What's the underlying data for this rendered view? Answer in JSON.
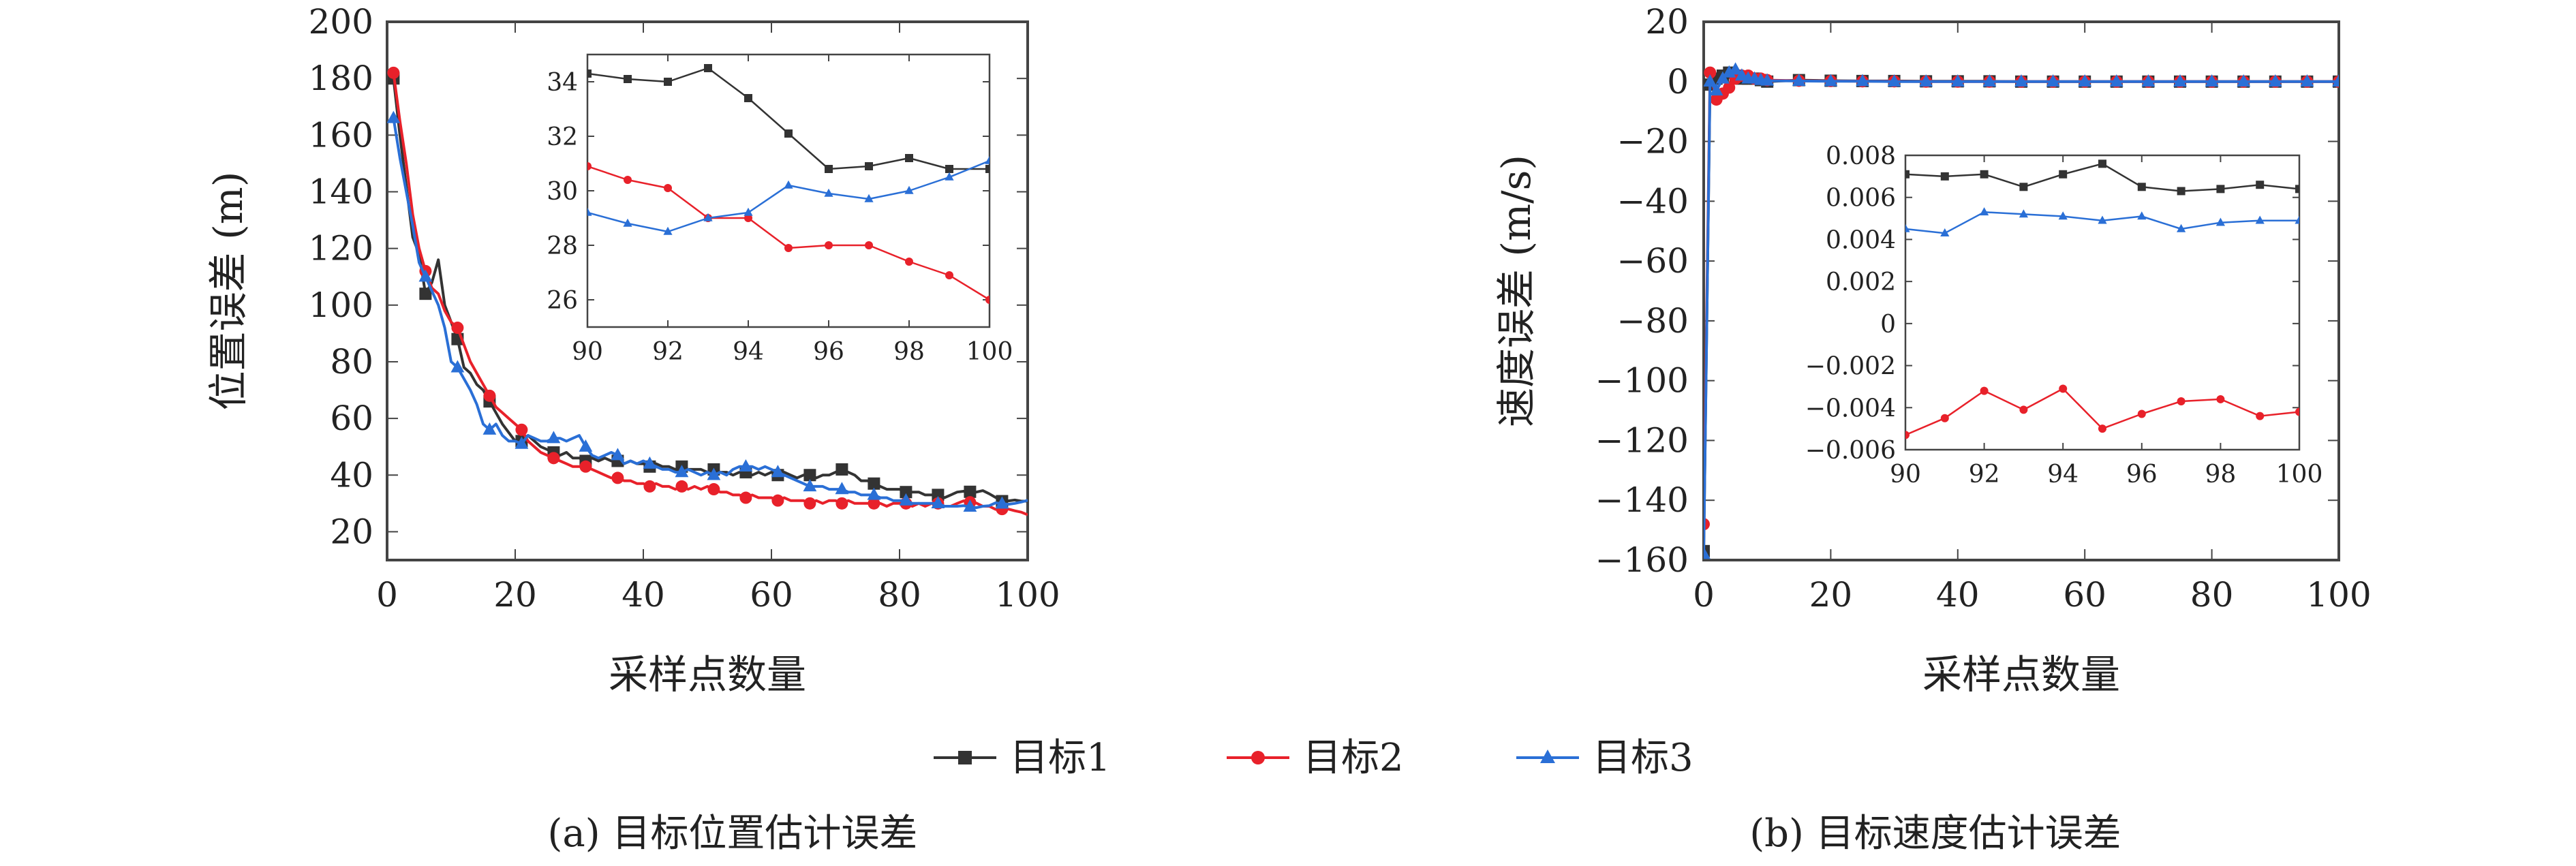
{
  "chart_data": [
    {
      "type": "line",
      "panel": "a",
      "caption": "(a) 目标位置估计误差",
      "xlabel": "采样点数量",
      "ylabel": "位置误差 (m)",
      "xlim": [
        0,
        100
      ],
      "ylim": [
        10,
        200
      ],
      "xticks": [
        0,
        20,
        40,
        60,
        80,
        100
      ],
      "yticks": [
        20,
        40,
        60,
        80,
        100,
        120,
        140,
        160,
        180,
        200
      ],
      "grid": false,
      "x": [
        1,
        2,
        3,
        4,
        5,
        6,
        7,
        8,
        9,
        10,
        11,
        12,
        13,
        14,
        15,
        16,
        17,
        18,
        19,
        20,
        21,
        22,
        23,
        24,
        25,
        26,
        27,
        28,
        29,
        30,
        31,
        32,
        33,
        34,
        35,
        36,
        37,
        38,
        39,
        40,
        41,
        42,
        43,
        44,
        45,
        46,
        47,
        48,
        49,
        50,
        51,
        52,
        53,
        54,
        55,
        56,
        57,
        58,
        59,
        60,
        61,
        62,
        63,
        64,
        65,
        66,
        67,
        68,
        69,
        70,
        71,
        72,
        73,
        74,
        75,
        76,
        77,
        78,
        79,
        80,
        81,
        82,
        83,
        84,
        85,
        86,
        87,
        88,
        89,
        90,
        91,
        92,
        93,
        94,
        95,
        96,
        97,
        98,
        99,
        100
      ],
      "markers_every": 5,
      "series": [
        {
          "name": "目标1",
          "color": "#333333",
          "marker": "square",
          "values": [
            180,
            160,
            142,
            124,
            118,
            104,
            108,
            116,
            100,
            94,
            88,
            78,
            76,
            72,
            70,
            66,
            62,
            58,
            55,
            52,
            52,
            54,
            52,
            50,
            49,
            48,
            47,
            48,
            46,
            46,
            45,
            46,
            45,
            46,
            45,
            45,
            44,
            45,
            44,
            44,
            43,
            44,
            43,
            43,
            42,
            43,
            42,
            42,
            42,
            41,
            42,
            41,
            41,
            40,
            41,
            41,
            40,
            41,
            40,
            41,
            40,
            41,
            40,
            39,
            40,
            40,
            39,
            40,
            40,
            41,
            42,
            41,
            40,
            38,
            38,
            37,
            36,
            35,
            35,
            35,
            34,
            34,
            34,
            33,
            33,
            33,
            32,
            33,
            34,
            34.3,
            34.1,
            34.0,
            34.5,
            33.4,
            32.1,
            30.8,
            30.9,
            31.2,
            30.8,
            30.8
          ]
        },
        {
          "name": "目标2",
          "color": "#e8212a",
          "marker": "circle",
          "values": [
            182,
            165,
            150,
            132,
            120,
            112,
            106,
            104,
            98,
            94,
            92,
            86,
            80,
            76,
            72,
            68,
            64,
            62,
            60,
            58,
            56,
            52,
            50,
            48,
            47,
            46,
            45,
            44,
            43,
            43,
            43,
            42,
            41,
            40,
            39,
            39,
            38,
            38,
            37,
            37,
            36,
            37,
            36,
            36,
            35,
            36,
            35,
            36,
            35,
            36,
            35,
            34,
            34,
            33,
            33,
            32,
            33,
            32,
            32,
            32,
            31,
            32,
            31,
            31,
            31,
            30,
            31,
            30,
            31,
            31,
            30,
            31,
            30,
            30,
            30,
            30,
            30,
            29,
            30,
            30,
            30,
            29,
            30,
            29,
            30,
            30,
            29,
            29,
            30,
            30.9,
            30.4,
            30.1,
            29.0,
            29.0,
            27.9,
            28.0,
            28.0,
            27.4,
            26.9,
            26.0
          ]
        },
        {
          "name": "目标3",
          "color": "#2a6fd6",
          "marker": "triangle",
          "values": [
            166,
            152,
            140,
            128,
            115,
            110,
            105,
            100,
            92,
            80,
            78,
            74,
            70,
            65,
            58,
            56,
            58,
            54,
            52,
            52,
            51,
            54,
            53,
            52,
            52,
            53,
            53,
            52,
            53,
            54,
            50,
            47,
            46,
            47,
            48,
            47,
            44,
            45,
            44,
            45,
            44,
            43,
            42,
            42,
            41,
            41,
            42,
            41,
            40,
            41,
            40,
            41,
            40,
            42,
            43,
            43,
            43,
            42,
            43,
            42,
            41,
            40,
            39,
            38,
            37,
            36,
            36,
            36,
            35,
            35,
            35,
            34,
            34,
            33,
            33,
            33,
            32,
            32,
            31,
            31,
            31,
            30,
            30,
            30,
            30,
            30,
            29,
            29,
            29,
            29.2,
            28.8,
            28.5,
            29.0,
            29.2,
            30.2,
            29.9,
            29.7,
            30.0,
            30.5,
            31.1
          ]
        }
      ],
      "inset": {
        "xlim": [
          90,
          100
        ],
        "ylim": [
          25,
          35
        ],
        "xticks": [
          90,
          92,
          94,
          96,
          98,
          100
        ],
        "yticks": [
          26,
          28,
          30,
          32,
          34
        ],
        "x": [
          90,
          91,
          92,
          93,
          94,
          95,
          96,
          97,
          98,
          99,
          100
        ],
        "series": [
          {
            "name": "目标1",
            "values": [
              34.3,
              34.1,
              34.0,
              34.5,
              33.4,
              32.1,
              30.8,
              30.9,
              31.2,
              30.8,
              30.8
            ]
          },
          {
            "name": "目标2",
            "values": [
              30.9,
              30.4,
              30.1,
              29.0,
              29.0,
              27.9,
              28.0,
              28.0,
              27.4,
              26.9,
              26.0
            ]
          },
          {
            "name": "目标3",
            "values": [
              29.2,
              28.8,
              28.5,
              29.0,
              29.2,
              30.2,
              29.9,
              29.7,
              30.0,
              30.5,
              31.1
            ]
          }
        ]
      }
    },
    {
      "type": "line",
      "panel": "b",
      "caption": "(b) 目标速度估计误差",
      "xlabel": "采样点数量",
      "ylabel": "速度误差 (m/s)",
      "xlim": [
        0,
        100
      ],
      "ylim": [
        -160,
        20
      ],
      "xticks": [
        0,
        20,
        40,
        60,
        80,
        100
      ],
      "yticks": [
        20,
        0,
        -20,
        -40,
        -60,
        -80,
        -100,
        -120,
        -140,
        -160
      ],
      "grid": false,
      "x": [
        0,
        1,
        2,
        3,
        4,
        5,
        6,
        7,
        8,
        9,
        10,
        15,
        20,
        25,
        30,
        35,
        40,
        45,
        50,
        55,
        60,
        65,
        70,
        75,
        80,
        85,
        90,
        95,
        100
      ],
      "series": [
        {
          "name": "目标1",
          "color": "#333333",
          "marker": "square",
          "values": [
            -157,
            -1,
            1,
            2,
            3,
            2,
            1,
            1,
            1,
            0.5,
            0,
            0.5,
            0.3,
            0.2,
            0.2,
            0.1,
            0.1,
            0.1,
            0,
            0,
            0,
            0,
            0,
            0,
            0,
            0,
            0,
            0,
            0
          ]
        },
        {
          "name": "目标2",
          "color": "#e8212a",
          "marker": "circle",
          "values": [
            -148,
            3,
            -6,
            -4,
            -2,
            1,
            2,
            2,
            1,
            1,
            0.5,
            0.3,
            0.2,
            0.1,
            0.1,
            0,
            0,
            0,
            0,
            0,
            0,
            0,
            0,
            0,
            0,
            0,
            0,
            0,
            0
          ]
        },
        {
          "name": "目标3",
          "color": "#2a6fd6",
          "marker": "triangle",
          "values": [
            -158,
            0,
            -3,
            1,
            3,
            4,
            2,
            1,
            1,
            0.5,
            0.3,
            0.2,
            0.1,
            0.1,
            0,
            0,
            0,
            0,
            0,
            0,
            0,
            0,
            0,
            0,
            0,
            0,
            0,
            0,
            0
          ]
        }
      ],
      "inset": {
        "xlim": [
          90,
          100
        ],
        "ylim": [
          -0.006,
          0.008
        ],
        "xticks": [
          90,
          92,
          94,
          96,
          98,
          100
        ],
        "yticks": [
          0.008,
          0.006,
          0.004,
          0.002,
          0,
          -0.002,
          -0.004,
          -0.006
        ],
        "ytick_labels": [
          "0.008",
          "0.006",
          "0.004",
          "0.002",
          "0",
          "-0.002",
          "-0.004",
          "-0.006"
        ],
        "x": [
          90,
          91,
          92,
          93,
          94,
          95,
          96,
          97,
          98,
          99,
          100
        ],
        "series": [
          {
            "name": "目标1",
            "values": [
              0.0071,
              0.007,
              0.0071,
              0.0065,
              0.0071,
              0.0076,
              0.0065,
              0.0063,
              0.0064,
              0.0066,
              0.0064
            ]
          },
          {
            "name": "目标2",
            "values": [
              -0.0053,
              -0.0045,
              -0.0032,
              -0.0041,
              -0.0031,
              -0.005,
              -0.0043,
              -0.0037,
              -0.0036,
              -0.0044,
              -0.0042
            ]
          },
          {
            "name": "目标3",
            "values": [
              0.0045,
              0.0043,
              0.0053,
              0.0052,
              0.0051,
              0.0049,
              0.0051,
              0.0045,
              0.0048,
              0.0049,
              0.0049
            ]
          }
        ]
      }
    }
  ],
  "legend": {
    "placement": "bottom-center",
    "items": [
      {
        "label": "目标1",
        "color": "#333333",
        "marker": "square"
      },
      {
        "label": "目标2",
        "color": "#e8212a",
        "marker": "circle"
      },
      {
        "label": "目标3",
        "color": "#2a6fd6",
        "marker": "triangle"
      }
    ]
  }
}
